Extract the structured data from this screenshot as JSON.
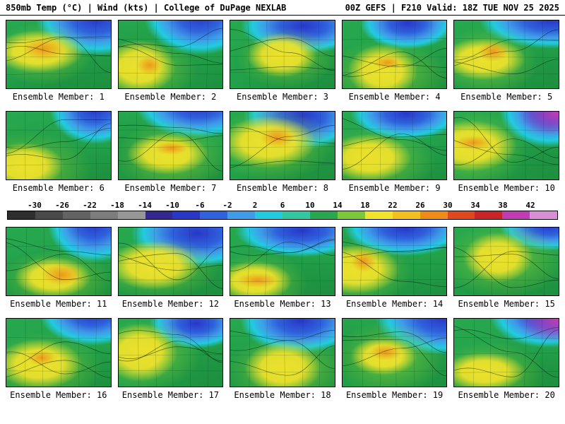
{
  "header": {
    "left": "850mb Temp (°C) | Wind (kts) | College of DuPage NEXLAB",
    "right": "00Z GEFS | F210 Valid: 18Z TUE NOV 25 2025"
  },
  "colorbar": {
    "ticks": [
      "-30",
      "-26",
      "-22",
      "-18",
      "-14",
      "-10",
      "-6",
      "-2",
      "2",
      "6",
      "10",
      "14",
      "18",
      "22",
      "26",
      "30",
      "34",
      "38",
      "42"
    ],
    "colors": [
      "#2e2e2e",
      "#4a4a4a",
      "#636363",
      "#7d7d7d",
      "#979797",
      "#34278f",
      "#2837c8",
      "#2f62dc",
      "#3f9ce8",
      "#22cbe0",
      "#2fc8a0",
      "#27a84e",
      "#7cc837",
      "#f2e32b",
      "#f3c01e",
      "#ee8c17",
      "#e0491d",
      "#cb2328",
      "#c13cb4",
      "#d88fd8"
    ]
  },
  "members": [
    {
      "label": "Ensemble Member: 1"
    },
    {
      "label": "Ensemble Member: 2"
    },
    {
      "label": "Ensemble Member: 3"
    },
    {
      "label": "Ensemble Member: 4"
    },
    {
      "label": "Ensemble Member: 5"
    },
    {
      "label": "Ensemble Member: 6"
    },
    {
      "label": "Ensemble Member: 7"
    },
    {
      "label": "Ensemble Member: 8"
    },
    {
      "label": "Ensemble Member: 9"
    },
    {
      "label": "Ensemble Member: 10"
    },
    {
      "label": "Ensemble Member: 11"
    },
    {
      "label": "Ensemble Member: 12"
    },
    {
      "label": "Ensemble Member: 13"
    },
    {
      "label": "Ensemble Member: 14"
    },
    {
      "label": "Ensemble Member: 15"
    },
    {
      "label": "Ensemble Member: 16"
    },
    {
      "label": "Ensemble Member: 17"
    },
    {
      "label": "Ensemble Member: 18"
    },
    {
      "label": "Ensemble Member: 19"
    },
    {
      "label": "Ensemble Member: 20"
    }
  ]
}
